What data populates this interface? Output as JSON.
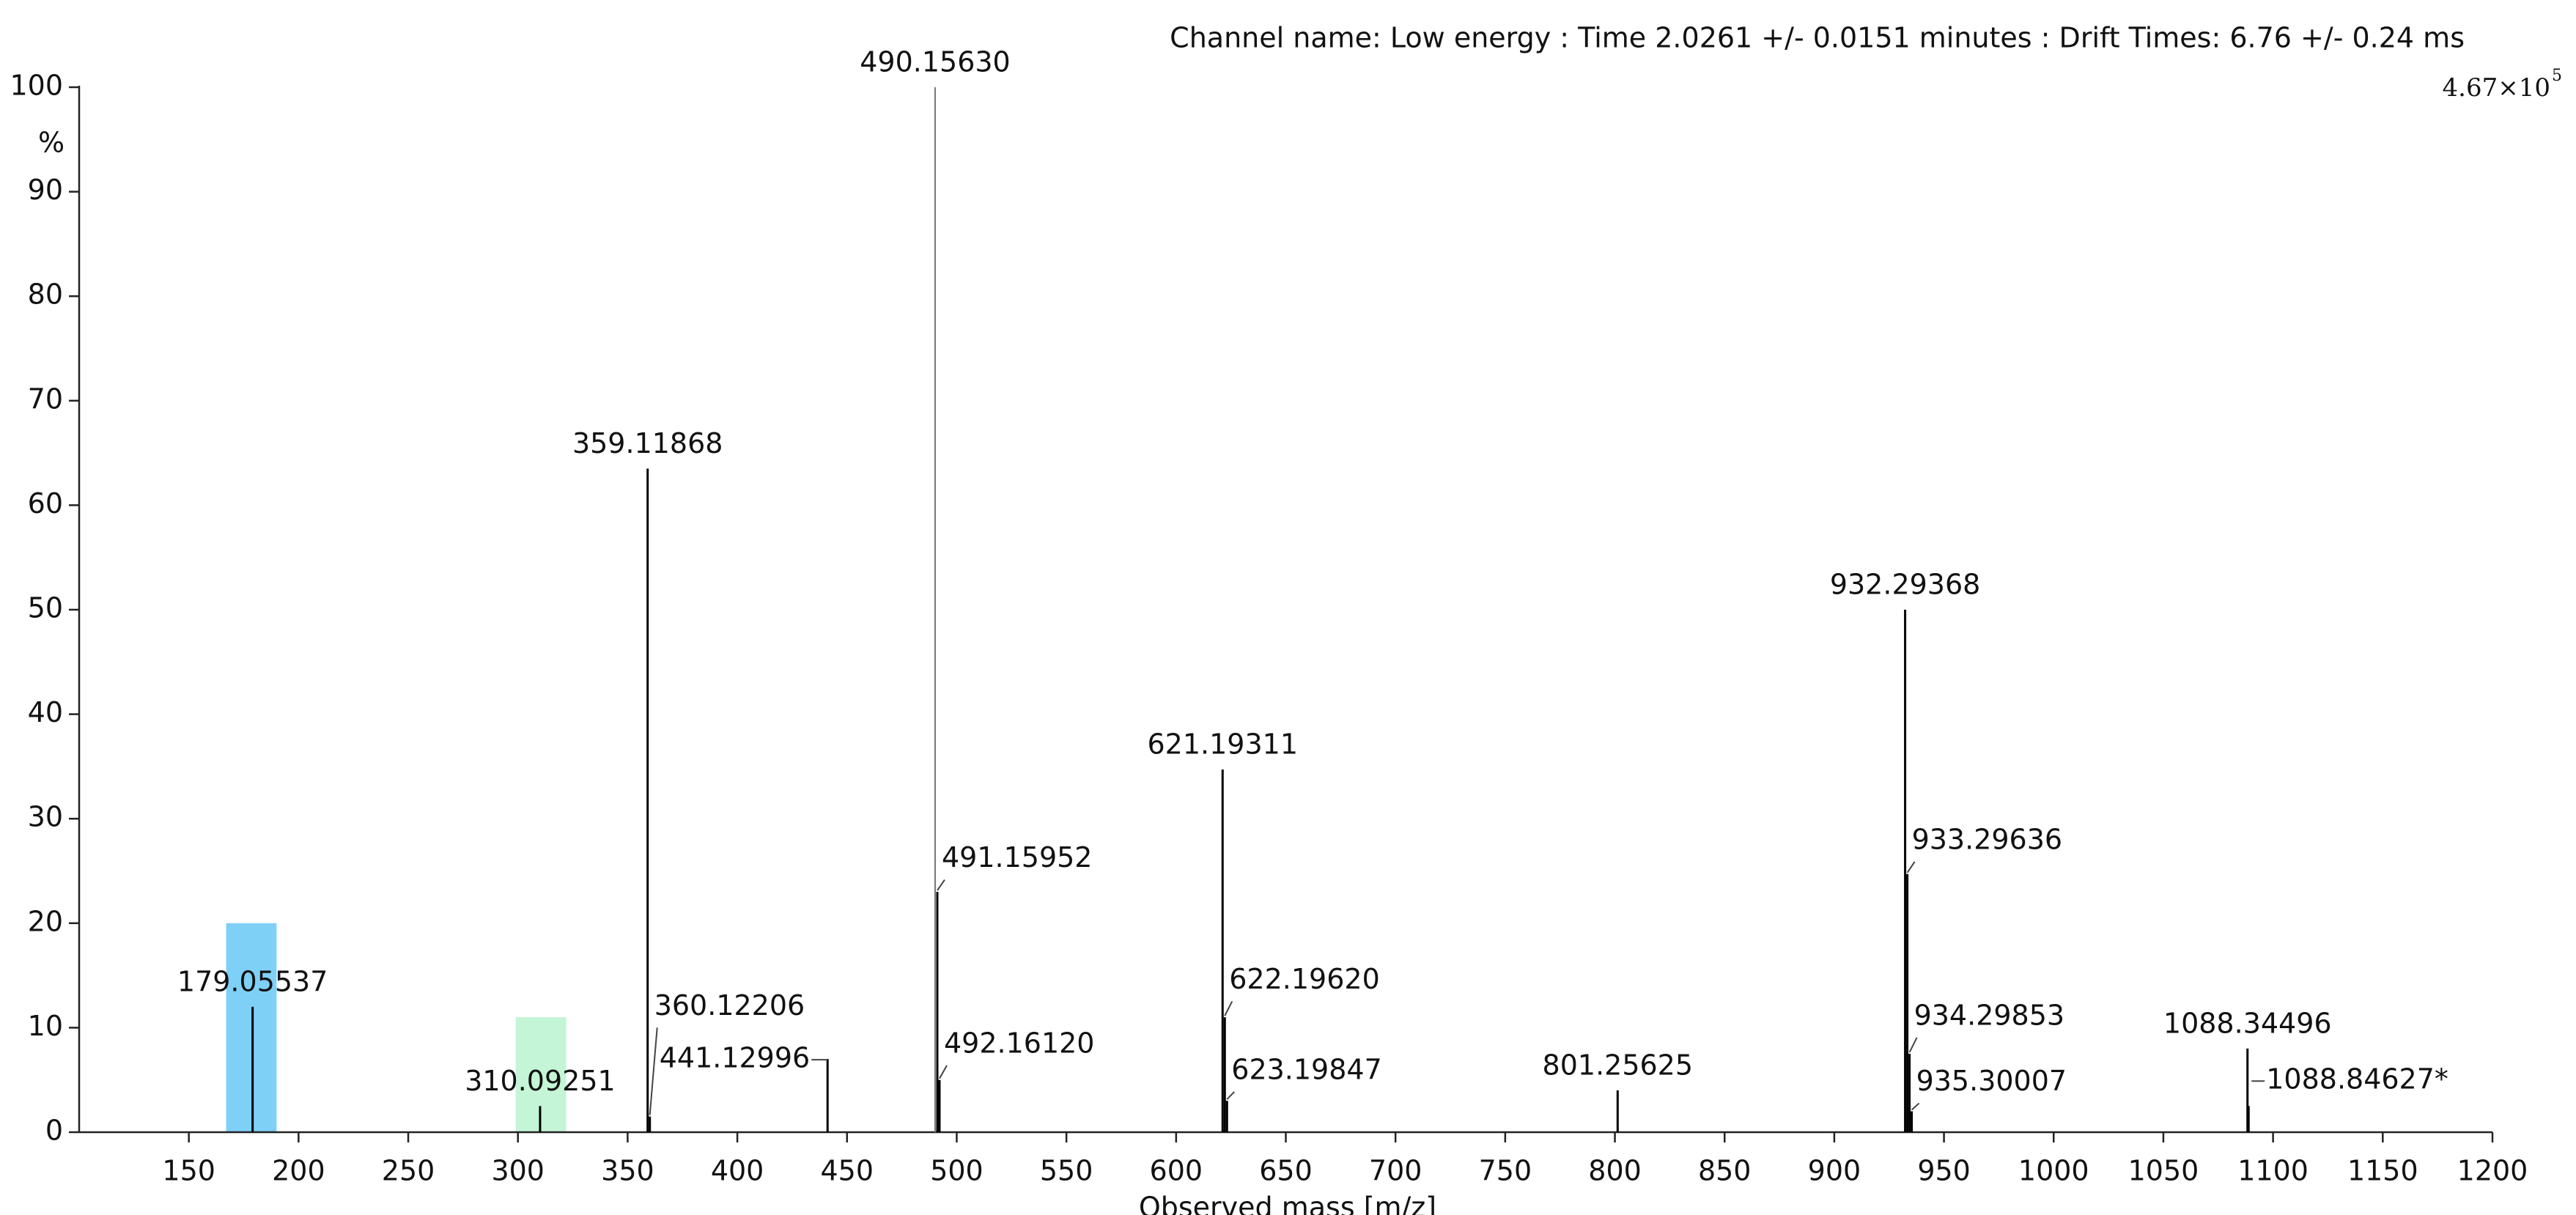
{
  "chart_data": {
    "type": "spectrum",
    "title": "Channel name: Low energy : Time 2.0261 +/- 0.0151 minutes : Drift Times: 6.76 +/- 0.24 ms",
    "intensity_scale": {
      "mantissa": "4.67×10",
      "exponent": "5"
    },
    "y_label": "%",
    "x_label": "Observed mass [m/z]",
    "color": "#000000",
    "x": [
      179.05537,
      310.09251,
      359.11868,
      360.12206,
      441.12996,
      490.1563,
      491.15952,
      492.1612,
      621.19311,
      622.1962,
      623.19847,
      801.25625,
      932.29368,
      933.29636,
      934.29853,
      935.30007,
      1088.34496,
      1088.84627
    ],
    "point_labels": [
      "179.05537",
      "310.09251",
      "359.11868",
      "360.12206",
      "441.12996",
      "490.15630",
      "491.15952",
      "492.16120",
      "621.19311",
      "622.19620",
      "623.19847",
      "801.25625",
      "932.29368",
      "933.29636",
      "934.29853",
      "935.30007",
      "1088.34496",
      "1088.84627*"
    ],
    "values": [
      12,
      2.5,
      63.5,
      1.5,
      7,
      100,
      23,
      5,
      34.7,
      11,
      3,
      4,
      50,
      24.7,
      7.5,
      2,
      8,
      2.5
    ],
    "highlights": [
      {
        "xrange": [
          167,
          190
        ],
        "height": 20,
        "color": "#7fd0f7"
      },
      {
        "xrange": [
          299,
          322
        ],
        "height": 11,
        "color": "#c4f5d6"
      }
    ],
    "xlim": [
      100,
      1200
    ],
    "ylim": [
      0,
      100
    ],
    "xticks": [
      150,
      200,
      250,
      300,
      350,
      400,
      450,
      500,
      550,
      600,
      650,
      700,
      750,
      800,
      850,
      900,
      950,
      1000,
      1050,
      1100,
      1150,
      1200
    ],
    "yticks": [
      0,
      10,
      20,
      30,
      40,
      50,
      60,
      70,
      80,
      90,
      100
    ]
  }
}
